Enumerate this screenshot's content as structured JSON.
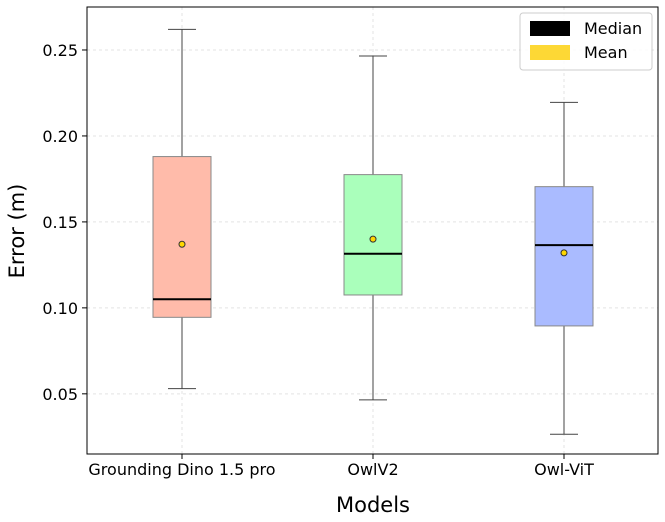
{
  "chart_data": {
    "type": "boxplot",
    "xlabel": "Models",
    "ylabel": "Error (m)",
    "ylim": [
      0.015,
      0.275
    ],
    "yticks": [
      "0.05",
      "0.10",
      "0.15",
      "0.20",
      "0.25"
    ],
    "ytick_values": [
      0.05,
      0.1,
      0.15,
      0.2,
      0.25
    ],
    "grid": true,
    "categories": [
      "Grounding Dino 1.5 pro",
      "OwlV2",
      "Owl-ViT"
    ],
    "series": [
      {
        "whisker_low": 0.053,
        "q1": 0.0945,
        "median": 0.105,
        "q3": 0.188,
        "whisker_high": 0.262,
        "mean": 0.137,
        "color": "#ffbbaa"
      },
      {
        "whisker_low": 0.0465,
        "q1": 0.1075,
        "median": 0.1315,
        "q3": 0.1775,
        "whisker_high": 0.2465,
        "mean": 0.14,
        "color": "#aaffbb"
      },
      {
        "whisker_low": 0.0265,
        "q1": 0.0895,
        "median": 0.1365,
        "q3": 0.1705,
        "whisker_high": 0.2195,
        "mean": 0.132,
        "color": "#aabbff"
      }
    ],
    "legend": {
      "placement": "top-right",
      "entries": [
        {
          "label": "Median",
          "color": "#000000"
        },
        {
          "label": "Mean",
          "color": "#fdd835"
        }
      ]
    },
    "mean_marker_color": "#ffd700"
  }
}
